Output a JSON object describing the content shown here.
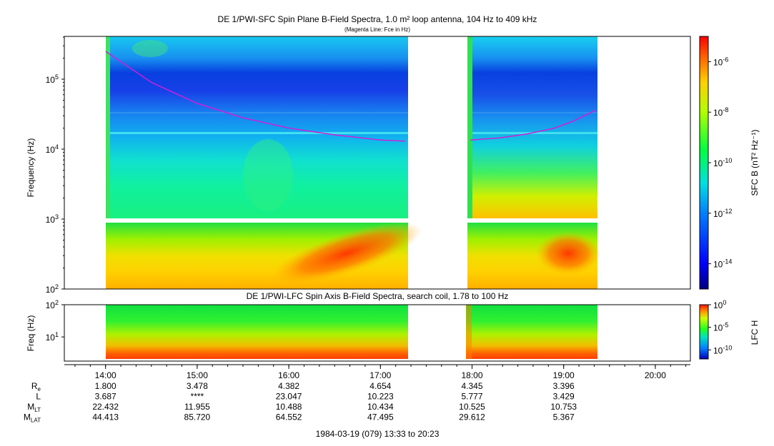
{
  "chart_data": [
    {
      "type": "heatmap",
      "title": "DE 1/PWI-SFC  Spin Plane B-Field Spectra, 1.0 m² loop antenna, 104 Hz to 409 kHz",
      "subtitle": "(Magenta Line: Fce in Hz)",
      "ylabel": "Frequency (Hz)",
      "yscale": "log",
      "ylim": [
        100,
        409000
      ],
      "y_ticks": [
        "10^2",
        "10^3",
        "10^4",
        "10^5"
      ],
      "colorbar": {
        "label": "SFC B (nT² Hz⁻¹)",
        "scale": "log",
        "range": [
          1e-15,
          1e-05
        ],
        "ticks": [
          "10^-6",
          "10^-8",
          "10^-10",
          "10^-12",
          "10^-14"
        ]
      },
      "data_coverage_hours": [
        [
          14.0,
          17.3
        ],
        [
          17.95,
          19.37
        ]
      ],
      "series": [
        {
          "name": "Fce",
          "color": "#d020d8",
          "segments": [
            {
              "x": [
                14.0,
                14.5,
                15.0,
                15.5,
                16.0,
                16.5,
                17.0,
                17.27
              ],
              "y": [
                250000,
                90000,
                45000,
                28000,
                20000,
                16000,
                13500,
                13000
              ]
            },
            {
              "x": [
                17.98,
                18.3,
                18.6,
                18.9,
                19.1,
                19.35
              ],
              "y": [
                13500,
                14500,
                16500,
                20000,
                25000,
                36000
              ]
            }
          ]
        }
      ]
    },
    {
      "type": "heatmap",
      "title": "DE 1/PWI-LFC  Spin Axis B-Field Spectra, search coil, 1.78 to 100 Hz",
      "ylabel": "Freq (Hz)",
      "yscale": "log",
      "ylim": [
        1.78,
        100
      ],
      "y_ticks": [
        "10^1",
        "10^2"
      ],
      "colorbar": {
        "label": "LFC H",
        "scale": "log",
        "ranges": [
          1e-12,
          1
        ],
        "ticks": [
          "10^0",
          "10^-5",
          "10^-10"
        ]
      },
      "data_coverage_hours": [
        [
          14.0,
          17.3
        ],
        [
          17.95,
          19.37
        ]
      ]
    }
  ],
  "time_axis": {
    "labels": [
      "14:00",
      "15:00",
      "16:00",
      "17:00",
      "18:00",
      "19:00",
      "20:00"
    ],
    "hours": [
      14,
      15,
      16,
      17,
      18,
      19,
      20
    ],
    "start_hour": 13.55,
    "end_hour": 20.383
  },
  "ephemeris": {
    "rows": [
      {
        "label": "R",
        "sub": "e",
        "values": [
          "1.800",
          "3.478",
          "4.382",
          "4.654",
          "4.345",
          "3.396"
        ]
      },
      {
        "label": "L",
        "sub": "",
        "values": [
          "3.687",
          "****",
          "23.047",
          "10.223",
          "5.777",
          "3.429"
        ]
      },
      {
        "label": "M",
        "sub": "LT",
        "values": [
          "22.432",
          "11.955",
          "10.488",
          "10.434",
          "10.525",
          "10.753"
        ]
      },
      {
        "label": "M",
        "sub": "LAT",
        "values": [
          "44.413",
          "85.720",
          "64.552",
          "47.495",
          "29.612",
          "5.367"
        ]
      }
    ]
  },
  "footer": "1984-03-19 (079) 13:33 to 20:23"
}
